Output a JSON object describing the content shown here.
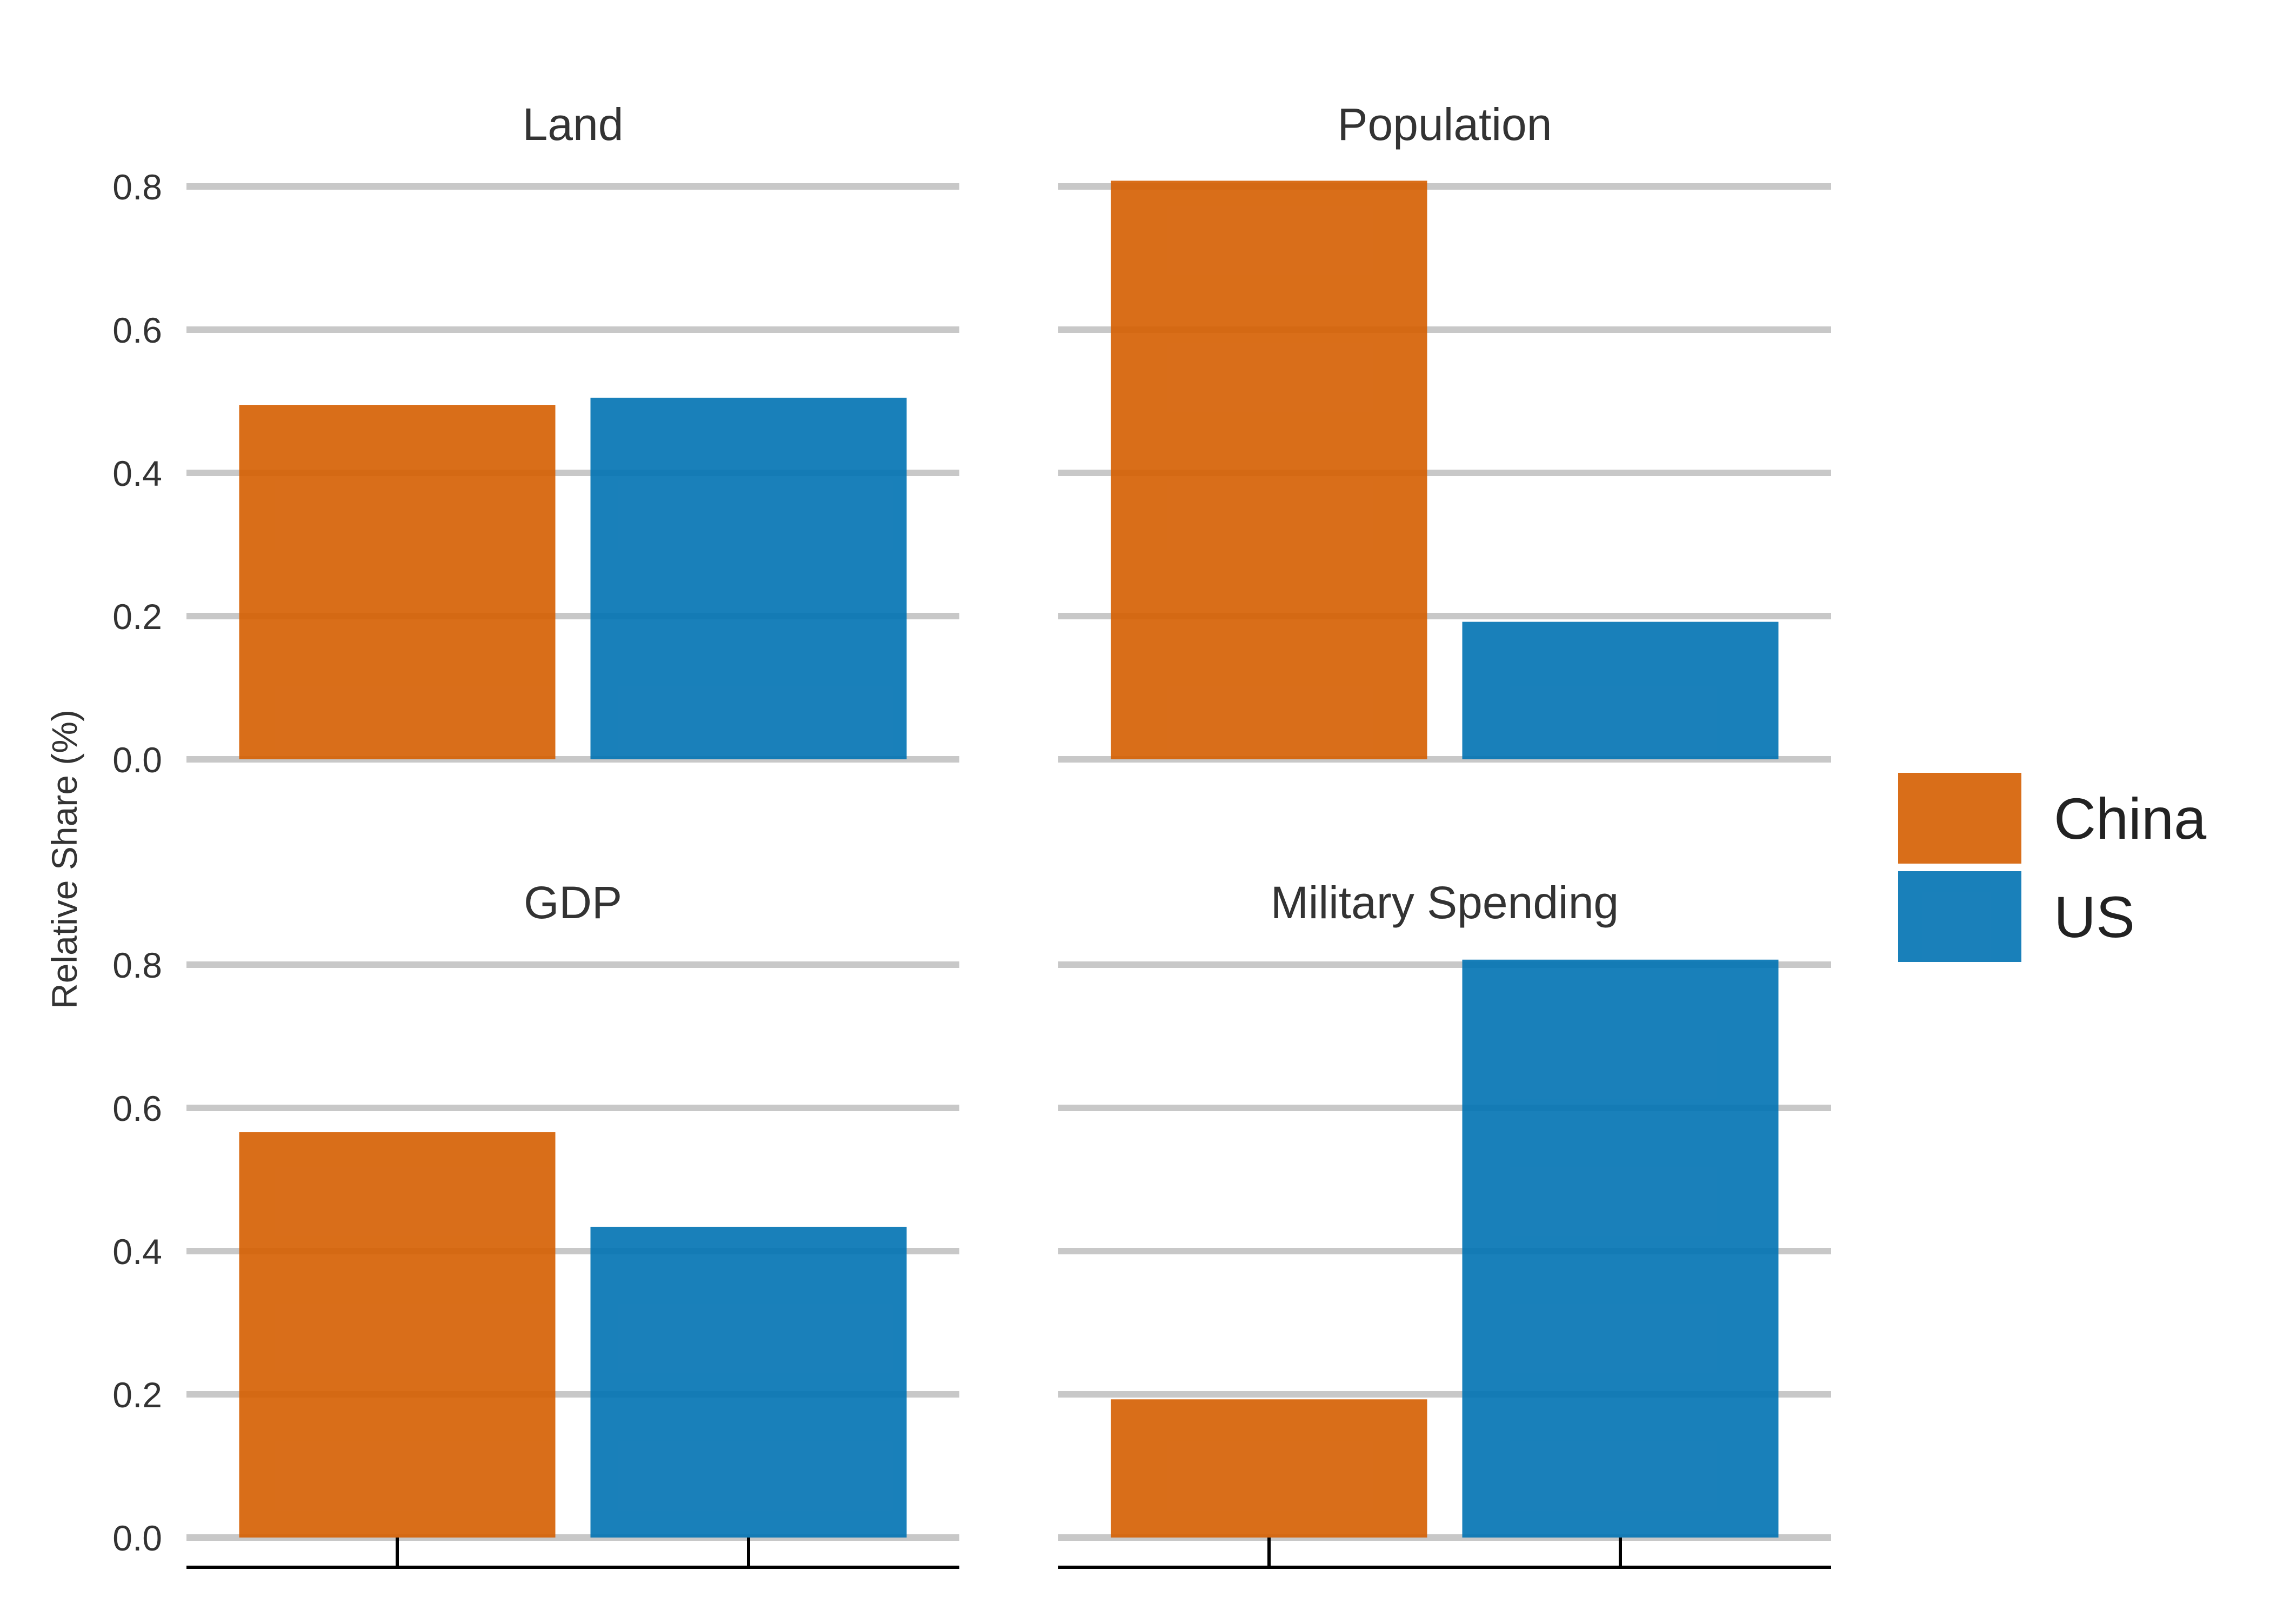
{
  "chart_data": {
    "type": "bar",
    "ylabel": "Relative Share (%)",
    "ylim": [
      0,
      0.8
    ],
    "yticks": [
      "0.0",
      "0.2",
      "0.4",
      "0.6",
      "0.8"
    ],
    "grid": true,
    "legend_placement": "right",
    "series": [
      {
        "name": "China",
        "color": "#D55E00"
      },
      {
        "name": "US",
        "color": "#0072B2"
      }
    ],
    "panels": [
      {
        "title": "Land",
        "values": [
          0.495,
          0.505
        ]
      },
      {
        "title": "Population",
        "values": [
          0.808,
          0.192
        ]
      },
      {
        "title": "GDP",
        "values": [
          0.566,
          0.434
        ]
      },
      {
        "title": "Military Spending",
        "values": [
          0.193,
          0.807
        ]
      }
    ]
  }
}
